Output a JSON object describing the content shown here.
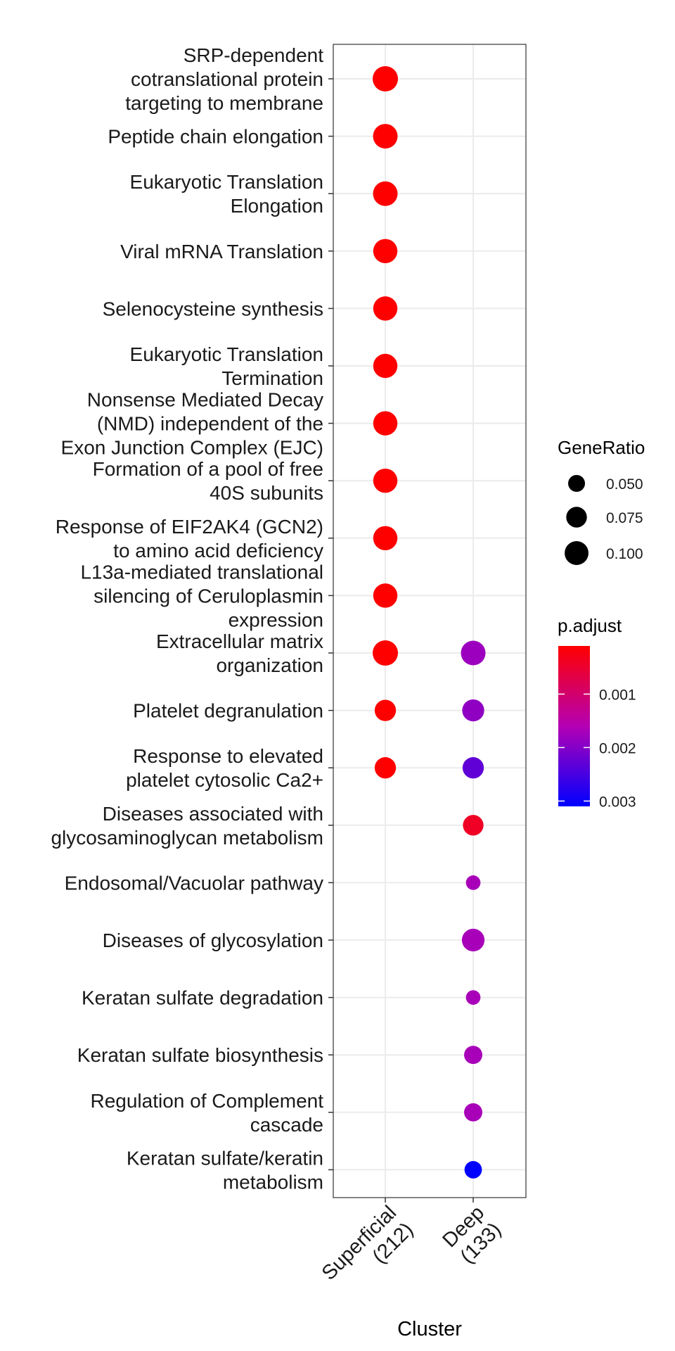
{
  "chart_data": {
    "type": "scatter",
    "title": "",
    "xlabel": "Cluster",
    "ylabel": "",
    "clusters": [
      {
        "name": "Superficial",
        "count": "(212)"
      },
      {
        "name": "Deep",
        "count": "(133)"
      }
    ],
    "terms": [
      "SRP-dependent cotranslational protein targeting to membrane",
      "Peptide chain elongation",
      "Eukaryotic Translation Elongation",
      "Viral mRNA Translation",
      "Selenocysteine synthesis",
      "Eukaryotic Translation Termination",
      "Nonsense Mediated Decay (NMD) independent of the Exon Junction Complex (EJC)",
      "Formation of a pool of free 40S subunits",
      "Response of EIF2AK4 (GCN2) to amino acid deficiency",
      "L13a-mediated translational silencing of Ceruloplasmin expression",
      "Extracellular matrix organization",
      "Platelet degranulation ",
      "Response to elevated platelet cytosolic Ca2+",
      "Diseases associated with glycosaminoglycan metabolism",
      "Endosomal/Vacuolar pathway",
      "Diseases of glycosylation",
      "Keratan sulfate degradation",
      "Keratan sulfate biosynthesis",
      "Regulation of Complement cascade",
      "Keratan sulfate/keratin metabolism"
    ],
    "term_lines": [
      [
        "SRP-dependent",
        "cotranslational protein",
        "targeting to membrane"
      ],
      [
        "Peptide chain elongation"
      ],
      [
        "Eukaryotic Translation",
        "Elongation"
      ],
      [
        "Viral mRNA Translation"
      ],
      [
        "Selenocysteine synthesis"
      ],
      [
        "Eukaryotic Translation",
        "Termination"
      ],
      [
        "Nonsense Mediated Decay",
        "(NMD) independent of the",
        "Exon Junction Complex (EJC)"
      ],
      [
        "Formation of a pool of free",
        "40S subunits"
      ],
      [
        "Response of EIF2AK4 (GCN2)",
        "to amino acid deficiency"
      ],
      [
        "L13a-mediated translational",
        "silencing of Ceruloplasmin",
        "expression"
      ],
      [
        "Extracellular matrix",
        "organization"
      ],
      [
        "Platelet degranulation "
      ],
      [
        "Response to elevated",
        "platelet cytosolic Ca2+"
      ],
      [
        "Diseases associated with",
        "glycosaminoglycan metabolism"
      ],
      [
        "Endosomal/Vacuolar pathway"
      ],
      [
        "Diseases of glycosylation"
      ],
      [
        "Keratan sulfate degradation"
      ],
      [
        "Keratan sulfate biosynthesis"
      ],
      [
        "Regulation of Complement",
        "cascade"
      ],
      [
        "Keratan sulfate/keratin",
        "metabolism"
      ]
    ],
    "points": [
      {
        "term": 0,
        "cluster": 0,
        "gene_ratio": 0.106,
        "p_adjust": 0.0001
      },
      {
        "term": 1,
        "cluster": 0,
        "gene_ratio": 0.1,
        "p_adjust": 0.0001
      },
      {
        "term": 2,
        "cluster": 0,
        "gene_ratio": 0.1,
        "p_adjust": 0.0001
      },
      {
        "term": 3,
        "cluster": 0,
        "gene_ratio": 0.097,
        "p_adjust": 0.0001
      },
      {
        "term": 4,
        "cluster": 0,
        "gene_ratio": 0.097,
        "p_adjust": 0.0001
      },
      {
        "term": 5,
        "cluster": 0,
        "gene_ratio": 0.097,
        "p_adjust": 0.0001
      },
      {
        "term": 6,
        "cluster": 0,
        "gene_ratio": 0.097,
        "p_adjust": 0.0001
      },
      {
        "term": 7,
        "cluster": 0,
        "gene_ratio": 0.097,
        "p_adjust": 0.0001
      },
      {
        "term": 8,
        "cluster": 0,
        "gene_ratio": 0.097,
        "p_adjust": 0.0001
      },
      {
        "term": 9,
        "cluster": 0,
        "gene_ratio": 0.097,
        "p_adjust": 0.0001
      },
      {
        "term": 10,
        "cluster": 0,
        "gene_ratio": 0.106,
        "p_adjust": 0.0001
      },
      {
        "term": 10,
        "cluster": 1,
        "gene_ratio": 0.1,
        "p_adjust": 0.0018
      },
      {
        "term": 11,
        "cluster": 0,
        "gene_ratio": 0.075,
        "p_adjust": 0.0001
      },
      {
        "term": 11,
        "cluster": 1,
        "gene_ratio": 0.08,
        "p_adjust": 0.0019
      },
      {
        "term": 12,
        "cluster": 0,
        "gene_ratio": 0.075,
        "p_adjust": 0.0001
      },
      {
        "term": 12,
        "cluster": 1,
        "gene_ratio": 0.075,
        "p_adjust": 0.0023
      },
      {
        "term": 13,
        "cluster": 1,
        "gene_ratio": 0.07,
        "p_adjust": 0.0004
      },
      {
        "term": 14,
        "cluster": 1,
        "gene_ratio": 0.035,
        "p_adjust": 0.0017
      },
      {
        "term": 15,
        "cluster": 1,
        "gene_ratio": 0.085,
        "p_adjust": 0.0017
      },
      {
        "term": 16,
        "cluster": 1,
        "gene_ratio": 0.035,
        "p_adjust": 0.0017
      },
      {
        "term": 17,
        "cluster": 1,
        "gene_ratio": 0.055,
        "p_adjust": 0.0017
      },
      {
        "term": 18,
        "cluster": 1,
        "gene_ratio": 0.055,
        "p_adjust": 0.0017
      },
      {
        "term": 19,
        "cluster": 1,
        "gene_ratio": 0.05,
        "p_adjust": 0.0031
      }
    ],
    "size_legend": {
      "title": "GeneRatio",
      "labels": [
        "0.050",
        "0.075",
        "0.100"
      ],
      "values": [
        0.05,
        0.075,
        0.1
      ]
    },
    "color_legend": {
      "title": "p.adjust",
      "labels": [
        "0.001",
        "0.002",
        "0.003"
      ],
      "values": [
        0.001,
        0.002,
        0.003
      ],
      "range": [
        0.0001,
        0.0031
      ],
      "low_color": "#FF0000",
      "high_color": "#0000FF"
    },
    "grid": true,
    "legend_position": "right"
  }
}
